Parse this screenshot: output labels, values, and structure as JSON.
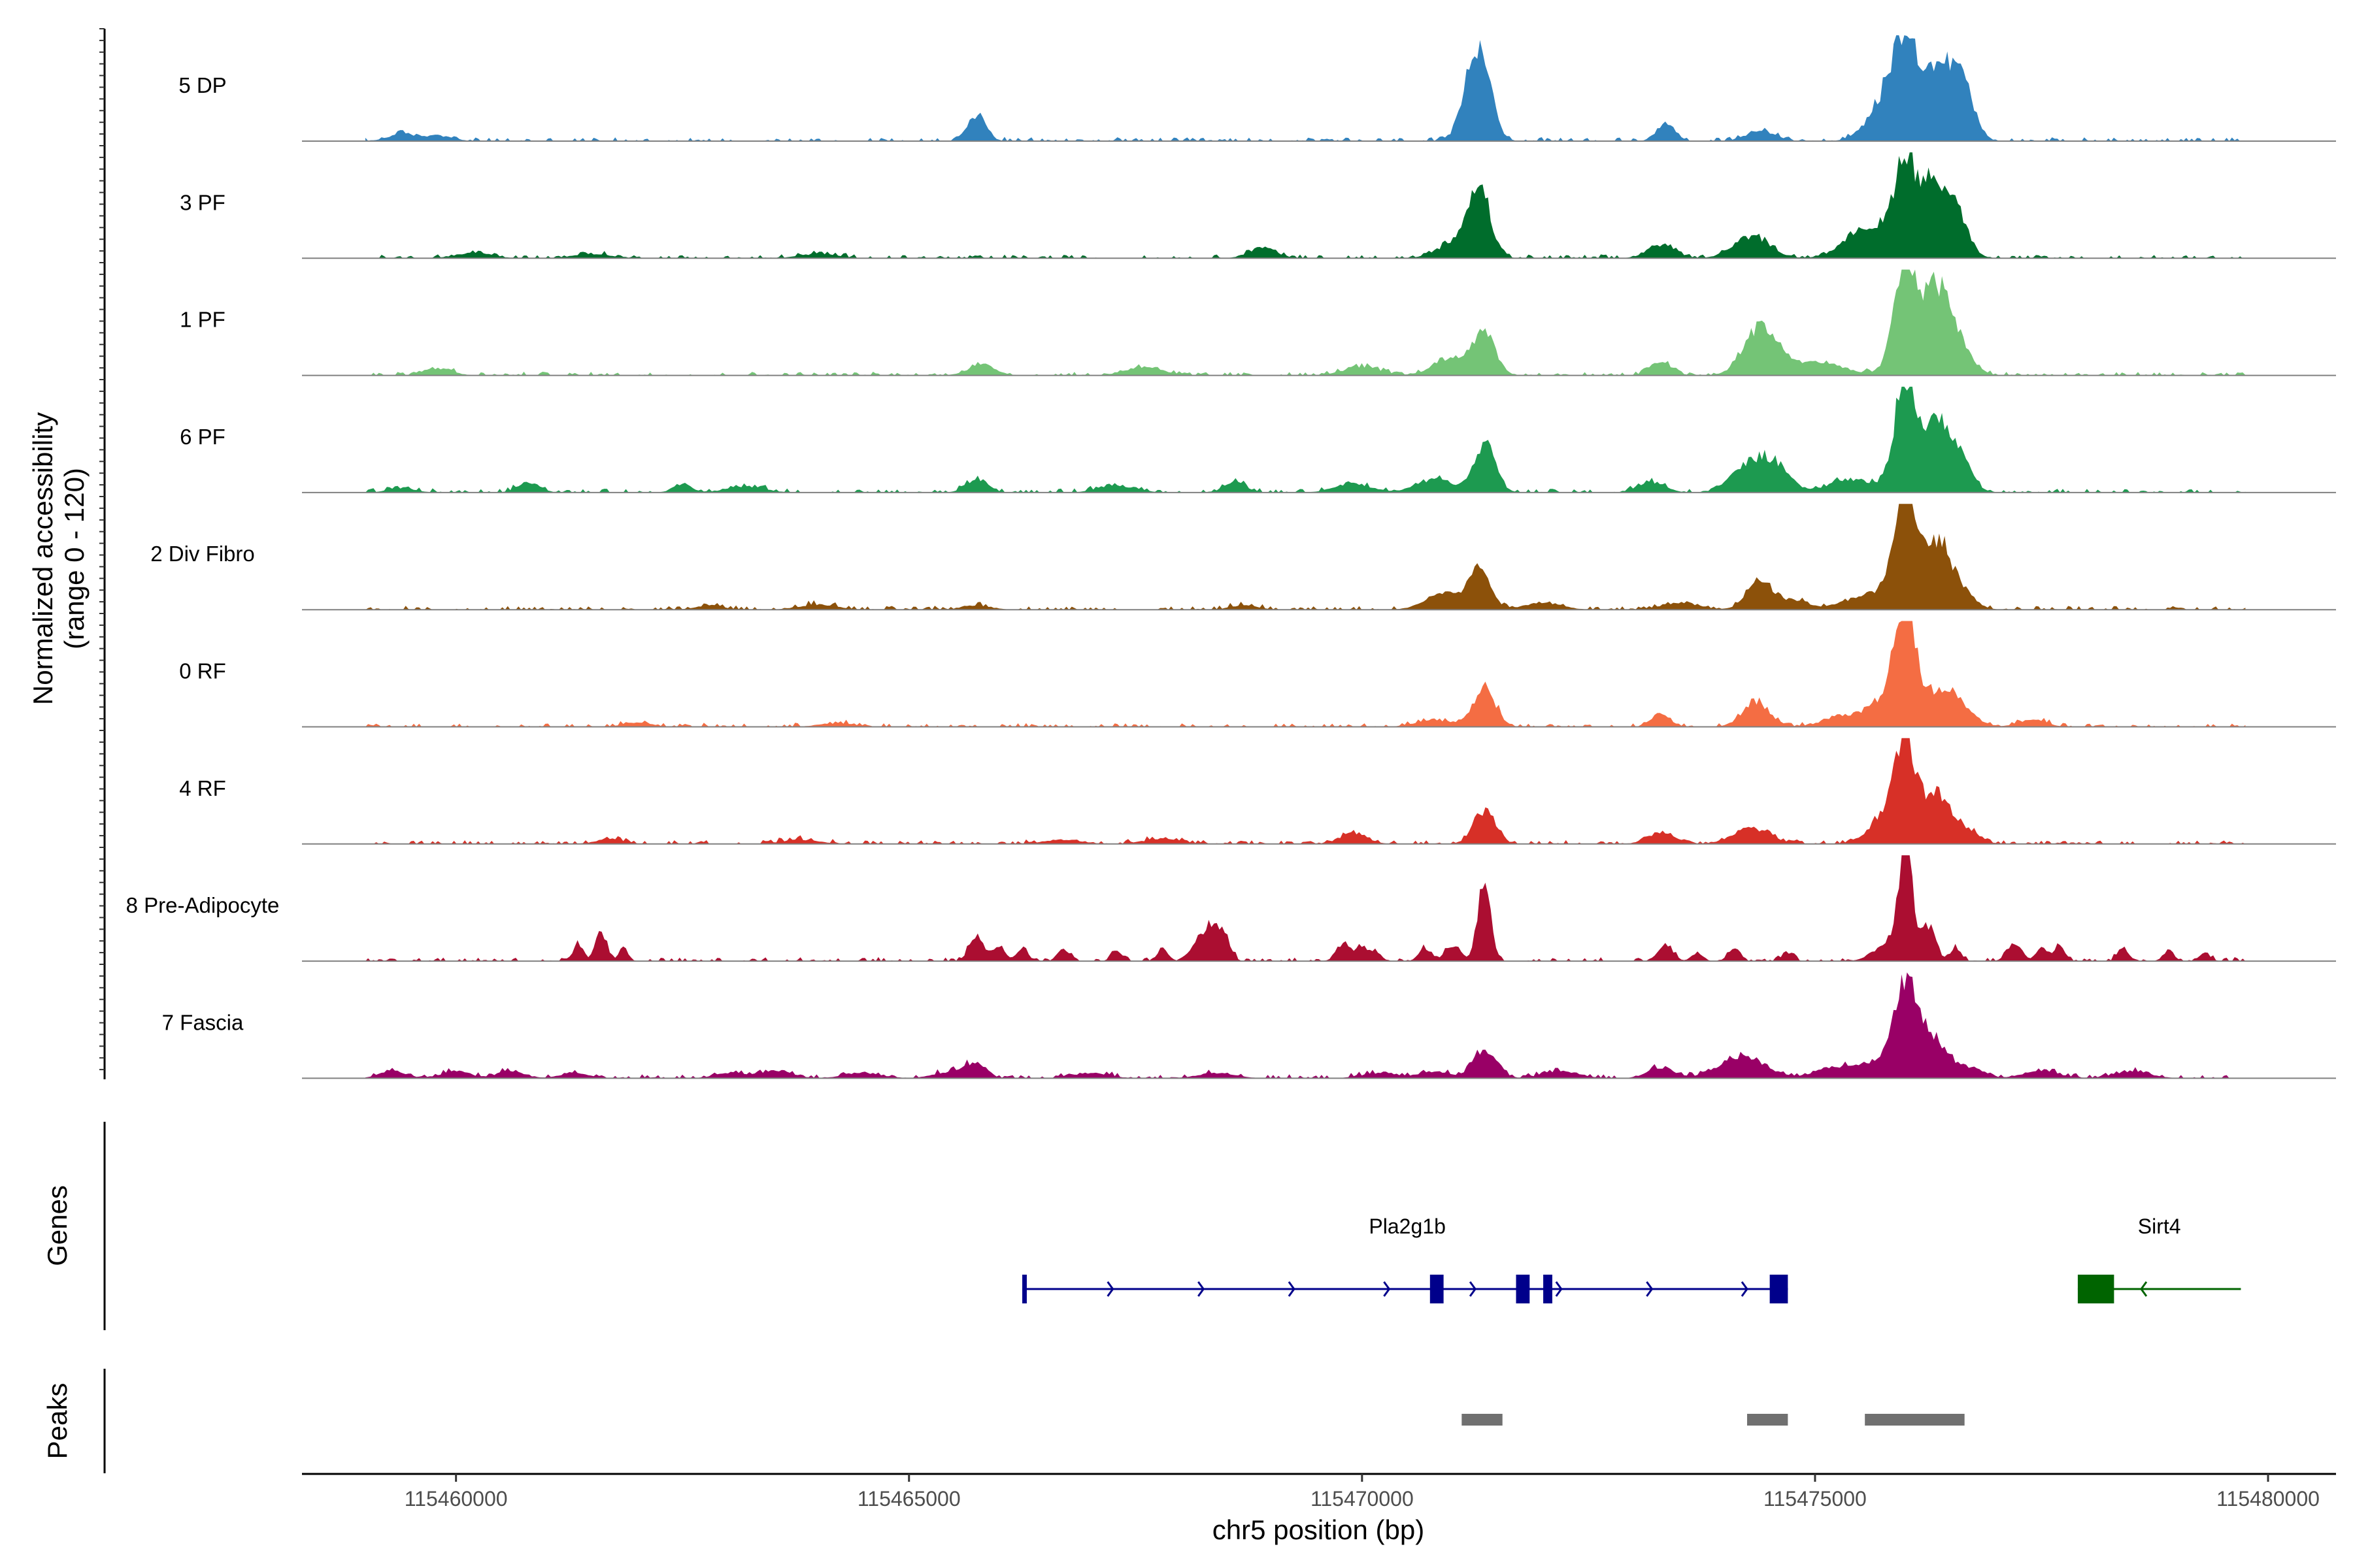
{
  "chart_data": {
    "type": "area",
    "title": "",
    "ylabel": "Normalized accessibility",
    "ylabel_range": "(range 0 - 120)",
    "y_range": [
      0,
      120
    ],
    "xlabel": "chr5 position (bp)",
    "xlim": [
      115458300,
      115480750
    ],
    "x_ticks": [
      115460000,
      115465000,
      115470000,
      115475000,
      115480000
    ],
    "x_tick_labels": [
      "115460000",
      "115465000",
      "115470000",
      "115475000",
      "115480000"
    ],
    "coverage_extent": [
      115459000,
      115479750
    ],
    "tracks": [
      {
        "name": "5 DP",
        "color": "#3182BD",
        "peaks": [
          [
            115459400,
            8,
            150
          ],
          [
            115459800,
            6,
            150
          ],
          [
            115465750,
            30,
            100
          ],
          [
            115471250,
            75,
            130
          ],
          [
            115471330,
            40,
            120
          ],
          [
            115473350,
            20,
            100
          ],
          [
            115474400,
            12,
            150
          ],
          [
            115475800,
            45,
            200
          ],
          [
            115476000,
            85,
            140
          ],
          [
            115476300,
            55,
            150
          ],
          [
            115476500,
            50,
            160
          ],
          [
            115476650,
            35,
            120
          ]
        ]
      },
      {
        "name": "3 PF",
        "color": "#006D2C",
        "peaks": [
          [
            115460200,
            6,
            200
          ],
          [
            115461500,
            5,
            200
          ],
          [
            115464000,
            5,
            200
          ],
          [
            115468900,
            12,
            150
          ],
          [
            115471300,
            70,
            120
          ],
          [
            115471050,
            18,
            200
          ],
          [
            115473300,
            15,
            150
          ],
          [
            115474300,
            25,
            200
          ],
          [
            115475600,
            35,
            250
          ],
          [
            115476000,
            110,
            120
          ],
          [
            115476300,
            80,
            120
          ],
          [
            115476550,
            55,
            130
          ]
        ]
      },
      {
        "name": "1 PF",
        "color": "#74C476",
        "peaks": [
          [
            115459800,
            8,
            150
          ],
          [
            115465800,
            12,
            150
          ],
          [
            115467600,
            10,
            200
          ],
          [
            115470000,
            10,
            200
          ],
          [
            115471000,
            20,
            200
          ],
          [
            115471350,
            48,
            120
          ],
          [
            115473300,
            15,
            120
          ],
          [
            115474400,
            55,
            180
          ],
          [
            115475000,
            15,
            300
          ],
          [
            115476000,
            120,
            130
          ],
          [
            115476350,
            95,
            150
          ],
          [
            115476600,
            25,
            150
          ]
        ]
      },
      {
        "name": "6 PF",
        "color": "#1D9A50",
        "peaks": [
          [
            115459400,
            5,
            150
          ],
          [
            115460800,
            12,
            120
          ],
          [
            115462500,
            10,
            100
          ],
          [
            115463200,
            7,
            200
          ],
          [
            115465750,
            15,
            120
          ],
          [
            115467300,
            8,
            200
          ],
          [
            115468600,
            12,
            120
          ],
          [
            115469900,
            10,
            200
          ],
          [
            115470800,
            15,
            200
          ],
          [
            115471350,
            55,
            120
          ],
          [
            115473200,
            12,
            150
          ],
          [
            115474300,
            35,
            200
          ],
          [
            115474600,
            20,
            150
          ],
          [
            115475400,
            15,
            250
          ],
          [
            115476000,
            130,
            120
          ],
          [
            115476350,
            75,
            140
          ],
          [
            115476600,
            35,
            130
          ]
        ]
      },
      {
        "name": "2 Div Fibro",
        "color": "#8C510A",
        "peaks": [
          [
            115462800,
            5,
            150
          ],
          [
            115464000,
            6,
            200
          ],
          [
            115465750,
            5,
            150
          ],
          [
            115468700,
            5,
            150
          ],
          [
            115470900,
            18,
            200
          ],
          [
            115471300,
            45,
            120
          ],
          [
            115472000,
            8,
            200
          ],
          [
            115473500,
            8,
            200
          ],
          [
            115474400,
            32,
            150
          ],
          [
            115474800,
            10,
            150
          ],
          [
            115475600,
            18,
            250
          ],
          [
            115476000,
            135,
            120
          ],
          [
            115476350,
            70,
            140
          ],
          [
            115476600,
            20,
            150
          ]
        ]
      },
      {
        "name": "0 RF",
        "color": "#F46D43",
        "peaks": [
          [
            115462000,
            5,
            150
          ],
          [
            115464200,
            4,
            200
          ],
          [
            115470800,
            8,
            200
          ],
          [
            115471350,
            45,
            120
          ],
          [
            115473300,
            15,
            100
          ],
          [
            115474350,
            28,
            150
          ],
          [
            115475300,
            12,
            200
          ],
          [
            115475800,
            30,
            200
          ],
          [
            115476000,
            125,
            120
          ],
          [
            115476400,
            40,
            150
          ],
          [
            115476650,
            15,
            150
          ],
          [
            115477400,
            8,
            150
          ]
        ]
      },
      {
        "name": "4 RF",
        "color": "#D73027",
        "peaks": [
          [
            115461700,
            6,
            150
          ],
          [
            115463800,
            5,
            200
          ],
          [
            115466700,
            5,
            200
          ],
          [
            115467800,
            6,
            200
          ],
          [
            115469900,
            12,
            150
          ],
          [
            115471350,
            38,
            120
          ],
          [
            115473300,
            12,
            150
          ],
          [
            115474300,
            18,
            200
          ],
          [
            115475800,
            30,
            200
          ],
          [
            115476000,
            100,
            120
          ],
          [
            115476350,
            50,
            150
          ],
          [
            115476650,
            15,
            150
          ]
        ]
      },
      {
        "name": "8 Pre-Adipocyte",
        "color": "#AB0E31",
        "peaks": [
          [
            115461600,
            35,
            60
          ],
          [
            115461350,
            20,
            50
          ],
          [
            115461850,
            15,
            50
          ],
          [
            115465750,
            30,
            80
          ],
          [
            115466000,
            18,
            60
          ],
          [
            115466250,
            15,
            60
          ],
          [
            115466700,
            15,
            60
          ],
          [
            115467300,
            12,
            60
          ],
          [
            115467800,
            15,
            60
          ],
          [
            115468200,
            20,
            80
          ],
          [
            115468350,
            40,
            70
          ],
          [
            115468500,
            25,
            60
          ],
          [
            115469800,
            20,
            80
          ],
          [
            115470000,
            15,
            60
          ],
          [
            115470150,
            10,
            60
          ],
          [
            115470700,
            15,
            70
          ],
          [
            115471000,
            18,
            80
          ],
          [
            115471350,
            90,
            70
          ],
          [
            115473350,
            20,
            80
          ],
          [
            115473700,
            10,
            60
          ],
          [
            115474100,
            15,
            60
          ],
          [
            115474700,
            10,
            60
          ],
          [
            115475800,
            20,
            150
          ],
          [
            115476000,
            140,
            70
          ],
          [
            115476250,
            40,
            80
          ],
          [
            115476550,
            15,
            60
          ],
          [
            115477200,
            20,
            80
          ],
          [
            115477500,
            15,
            60
          ],
          [
            115477700,
            18,
            60
          ],
          [
            115478400,
            15,
            60
          ],
          [
            115478900,
            12,
            60
          ],
          [
            115479300,
            10,
            60
          ]
        ]
      },
      {
        "name": "7 Fascia",
        "color": "#990066",
        "peaks": [
          [
            115459300,
            8,
            150
          ],
          [
            115460000,
            8,
            150
          ],
          [
            115460600,
            8,
            150
          ],
          [
            115461300,
            6,
            150
          ],
          [
            115463000,
            6,
            150
          ],
          [
            115463500,
            8,
            200
          ],
          [
            115464500,
            6,
            200
          ],
          [
            115465500,
            8,
            200
          ],
          [
            115465750,
            15,
            100
          ],
          [
            115467000,
            6,
            200
          ],
          [
            115468400,
            6,
            200
          ],
          [
            115470200,
            6,
            200
          ],
          [
            115470800,
            8,
            150
          ],
          [
            115471350,
            32,
            130
          ],
          [
            115472200,
            8,
            200
          ],
          [
            115473300,
            12,
            150
          ],
          [
            115474200,
            25,
            250
          ],
          [
            115475200,
            12,
            200
          ],
          [
            115475700,
            20,
            200
          ],
          [
            115476000,
            100,
            120
          ],
          [
            115476300,
            45,
            150
          ],
          [
            115476700,
            12,
            150
          ],
          [
            115477500,
            8,
            200
          ],
          [
            115478500,
            8,
            200
          ]
        ]
      }
    ],
    "genes": [
      {
        "name": "Pla2g1b",
        "strand": "+",
        "color": "#00008B",
        "start": 115466250,
        "end": 115474700,
        "exons": [
          [
            115466250,
            115466300
          ],
          [
            115470750,
            115470900
          ],
          [
            115471700,
            115471850
          ],
          [
            115472000,
            115472100
          ],
          [
            115474500,
            115474700
          ]
        ],
        "arrows": [
          115467250,
          115468250,
          115469250,
          115470300,
          115471250,
          115472200,
          115473200,
          115474250
        ]
      },
      {
        "name": "Sirt4",
        "strand": "-",
        "color": "#006400",
        "start": 115477900,
        "end": 115479700,
        "exons": [
          [
            115477900,
            115478300
          ]
        ],
        "arrows": [
          115478600
        ]
      }
    ],
    "peaks_track": [
      [
        115471100,
        115471550
      ],
      [
        115474250,
        115474700
      ],
      [
        115475550,
        115476650
      ]
    ],
    "section_labels": {
      "genes": "Genes",
      "peaks": "Peaks"
    },
    "baseline_color": "#808080",
    "peak_color": "#707070"
  }
}
